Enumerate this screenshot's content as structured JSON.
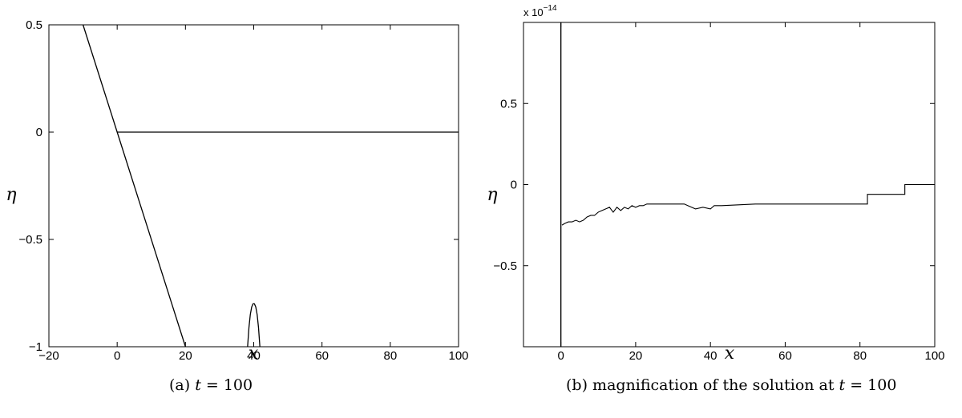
{
  "chart_data": [
    {
      "type": "line",
      "xlabel": "x",
      "ylabel": "η",
      "xlim": [
        -20,
        100
      ],
      "ylim": [
        -1,
        0.5
      ],
      "xticks": [
        -20,
        0,
        20,
        40,
        60,
        80,
        100
      ],
      "xtick_labels": [
        "−20",
        "0",
        "20",
        "40",
        "60",
        "80",
        "100"
      ],
      "yticks": [
        -1,
        -0.5,
        0,
        0.5
      ],
      "ytick_labels": [
        "−1",
        "−0.5",
        "0",
        "0.5"
      ],
      "caption": {
        "tag": "(a)",
        "var": "t",
        "rest": " = 100"
      },
      "series": [
        {
          "x": [
            -10,
            0,
            20
          ],
          "y": [
            0.5,
            0,
            -1
          ]
        },
        {
          "x": [
            0,
            100
          ],
          "y": [
            0,
            0
          ]
        },
        {
          "x": [
            38.2,
            38.6,
            39.0,
            39.4,
            39.8,
            40.2,
            40.6,
            41.0,
            41.4,
            41.8
          ],
          "y": [
            -1,
            -0.91,
            -0.85,
            -0.815,
            -0.8,
            -0.8,
            -0.815,
            -0.85,
            -0.91,
            -1
          ]
        }
      ]
    },
    {
      "type": "line",
      "xlabel": "x",
      "ylabel": "η",
      "xlim": [
        -10,
        100
      ],
      "ylim": [
        -1,
        1
      ],
      "y_multiplier_base": "x 10",
      "y_multiplier_exp": "−14",
      "xticks": [
        0,
        20,
        40,
        60,
        80,
        100
      ],
      "xtick_labels": [
        "0",
        "20",
        "40",
        "60",
        "80",
        "100"
      ],
      "yticks": [
        -0.5,
        0,
        0.5
      ],
      "ytick_labels": [
        "−0.5",
        "0",
        "0.5"
      ],
      "caption": {
        "tag": "(b)",
        "text": "magnification of the solution at ",
        "var": "t",
        "rest": " = 100"
      },
      "series": [
        {
          "x": [
            0,
            0
          ],
          "y": [
            1,
            -1
          ]
        },
        {
          "x": [
            0.3,
            1,
            2,
            3,
            4,
            5,
            6,
            7,
            8,
            9,
            10,
            11,
            12,
            13,
            14,
            15,
            16,
            17,
            18,
            19,
            20,
            21,
            22,
            23,
            33,
            34,
            35,
            36,
            38,
            40,
            41,
            43,
            52,
            82,
            82,
            92,
            92,
            100
          ],
          "y": [
            -0.25,
            -0.24,
            -0.23,
            -0.23,
            -0.22,
            -0.23,
            -0.22,
            -0.2,
            -0.19,
            -0.19,
            -0.17,
            -0.16,
            -0.15,
            -0.14,
            -0.17,
            -0.14,
            -0.16,
            -0.14,
            -0.15,
            -0.13,
            -0.14,
            -0.13,
            -0.13,
            -0.12,
            -0.12,
            -0.13,
            -0.14,
            -0.15,
            -0.14,
            -0.15,
            -0.13,
            -0.13,
            -0.12,
            -0.12,
            -0.06,
            -0.06,
            0,
            0
          ]
        }
      ]
    }
  ]
}
